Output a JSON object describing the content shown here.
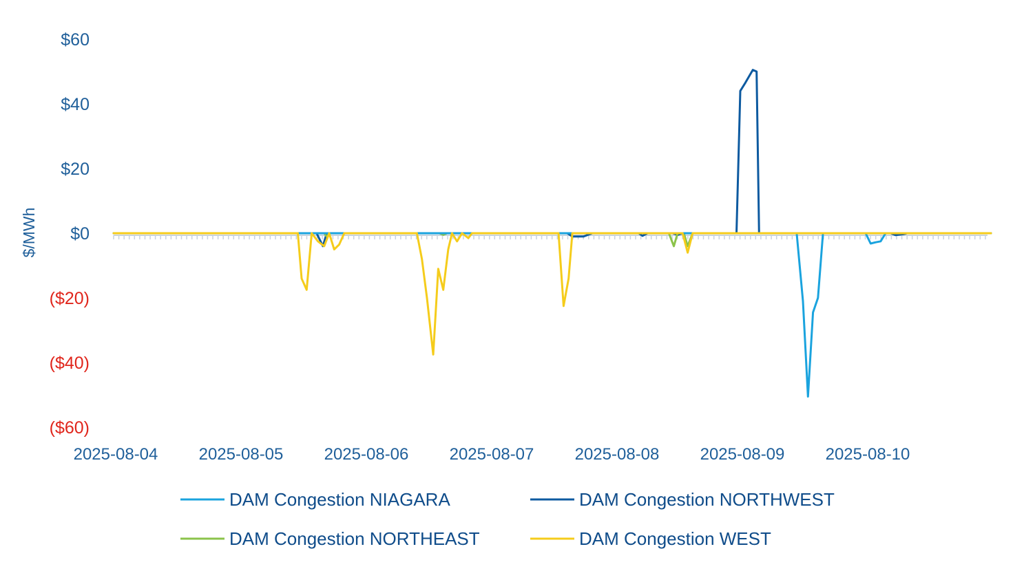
{
  "chart_data": {
    "type": "line",
    "title": "",
    "xlabel": "",
    "ylabel": "$/MWh",
    "ylim": [
      -60,
      60
    ],
    "y_ticks": [
      {
        "value": 60,
        "label": "$60"
      },
      {
        "value": 40,
        "label": "$40"
      },
      {
        "value": 20,
        "label": "$20"
      },
      {
        "value": 0,
        "label": "$0"
      },
      {
        "value": -20,
        "label": "($20)"
      },
      {
        "value": -40,
        "label": "($40)"
      },
      {
        "value": -60,
        "label": "($60)"
      }
    ],
    "x_tick_labels": [
      "2025-08-04",
      "2025-08-05",
      "2025-08-06",
      "2025-08-07",
      "2025-08-08",
      "2025-08-09",
      "2025-08-10"
    ],
    "x_range_days": [
      0,
      7
    ],
    "colors": {
      "positive_tick": "#1f5f9a",
      "negative_tick": "#e0261c",
      "axis": "#c8d3de"
    },
    "legend_placement": "bottom",
    "series": [
      {
        "name": "DAM Congestion NIAGARA",
        "color": "#1aa3de",
        "points": [
          [
            0,
            0
          ],
          [
            5.45,
            0
          ],
          [
            5.5,
            -21
          ],
          [
            5.54,
            -50.5
          ],
          [
            5.58,
            -24.5
          ],
          [
            5.62,
            -20
          ],
          [
            5.66,
            0
          ],
          [
            6.0,
            0
          ],
          [
            6.04,
            -3.2
          ],
          [
            6.08,
            -2.8
          ],
          [
            6.12,
            -2.5
          ],
          [
            6.16,
            0
          ],
          [
            7,
            0
          ]
        ]
      },
      {
        "name": "DAM Congestion NORTHWEST",
        "color": "#0d5aa0",
        "points": [
          [
            0,
            0
          ],
          [
            1.62,
            0
          ],
          [
            1.67,
            -4
          ],
          [
            1.7,
            0
          ],
          [
            3.62,
            0
          ],
          [
            3.66,
            -1
          ],
          [
            3.75,
            -1
          ],
          [
            3.82,
            0
          ],
          [
            4.19,
            0
          ],
          [
            4.22,
            -0.8
          ],
          [
            4.26,
            0
          ],
          [
            4.46,
            0
          ],
          [
            4.5,
            -0.5
          ],
          [
            4.54,
            0
          ],
          [
            4.97,
            0
          ],
          [
            5.0,
            44
          ],
          [
            5.04,
            46.5
          ],
          [
            5.1,
            50.5
          ],
          [
            5.13,
            50
          ],
          [
            5.15,
            0
          ],
          [
            6.2,
            0
          ],
          [
            6.24,
            -0.6
          ],
          [
            6.3,
            -0.3
          ],
          [
            6.33,
            0
          ],
          [
            7,
            0
          ]
        ]
      },
      {
        "name": "DAM Congestion NORTHEAST",
        "color": "#8bc34a",
        "points": [
          [
            0,
            0
          ],
          [
            1.68,
            0
          ],
          [
            1.7,
            -1
          ],
          [
            1.73,
            0
          ],
          [
            2.6,
            0
          ],
          [
            2.63,
            -0.5
          ],
          [
            2.66,
            0
          ],
          [
            4.43,
            0
          ],
          [
            4.47,
            -4
          ],
          [
            4.5,
            0
          ],
          [
            4.55,
            0
          ],
          [
            4.58,
            -4
          ],
          [
            4.62,
            0
          ],
          [
            7,
            0
          ]
        ]
      },
      {
        "name": "DAM Congestion WEST",
        "color": "#f5cc1b",
        "points": [
          [
            0,
            0
          ],
          [
            1.47,
            0
          ],
          [
            1.5,
            -14
          ],
          [
            1.54,
            -17.5
          ],
          [
            1.58,
            0
          ],
          [
            1.63,
            -2.5
          ],
          [
            1.68,
            -4
          ],
          [
            1.72,
            0
          ],
          [
            1.76,
            -5
          ],
          [
            1.8,
            -3.5
          ],
          [
            1.84,
            0
          ],
          [
            2.42,
            0
          ],
          [
            2.46,
            -8
          ],
          [
            2.5,
            -20
          ],
          [
            2.55,
            -37.5
          ],
          [
            2.59,
            -11
          ],
          [
            2.63,
            -17.5
          ],
          [
            2.67,
            -5
          ],
          [
            2.7,
            0
          ],
          [
            2.74,
            -2.5
          ],
          [
            2.78,
            0
          ],
          [
            2.83,
            -1.5
          ],
          [
            2.86,
            0
          ],
          [
            3.55,
            0
          ],
          [
            3.59,
            -22.5
          ],
          [
            3.63,
            -14
          ],
          [
            3.66,
            0
          ],
          [
            4.5,
            0
          ],
          [
            4.54,
            0
          ],
          [
            4.58,
            -6
          ],
          [
            4.62,
            0
          ],
          [
            7,
            0
          ]
        ]
      }
    ]
  }
}
